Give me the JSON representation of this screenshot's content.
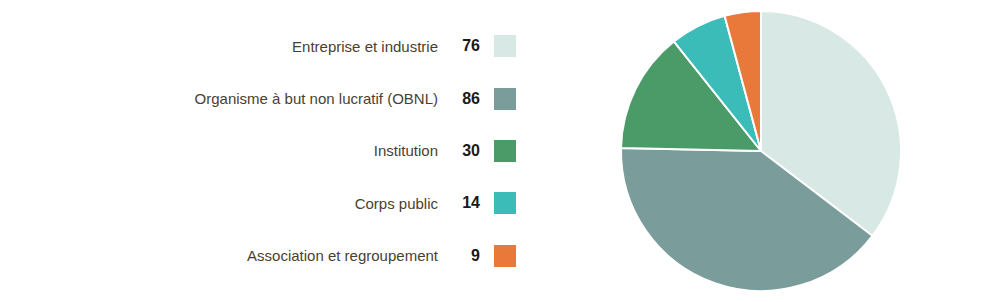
{
  "chart_data": {
    "type": "pie",
    "categories": [
      "Entreprise et industrie",
      "Organisme à but non lucratif (OBNL)",
      "Institution",
      "Corps public",
      "Association et regroupement"
    ],
    "values": [
      76,
      86,
      30,
      14,
      9
    ],
    "colors": [
      "#d8e8e5",
      "#7a9d9b",
      "#4a9b68",
      "#3bbcb8",
      "#e8793a"
    ],
    "legend": "left"
  }
}
